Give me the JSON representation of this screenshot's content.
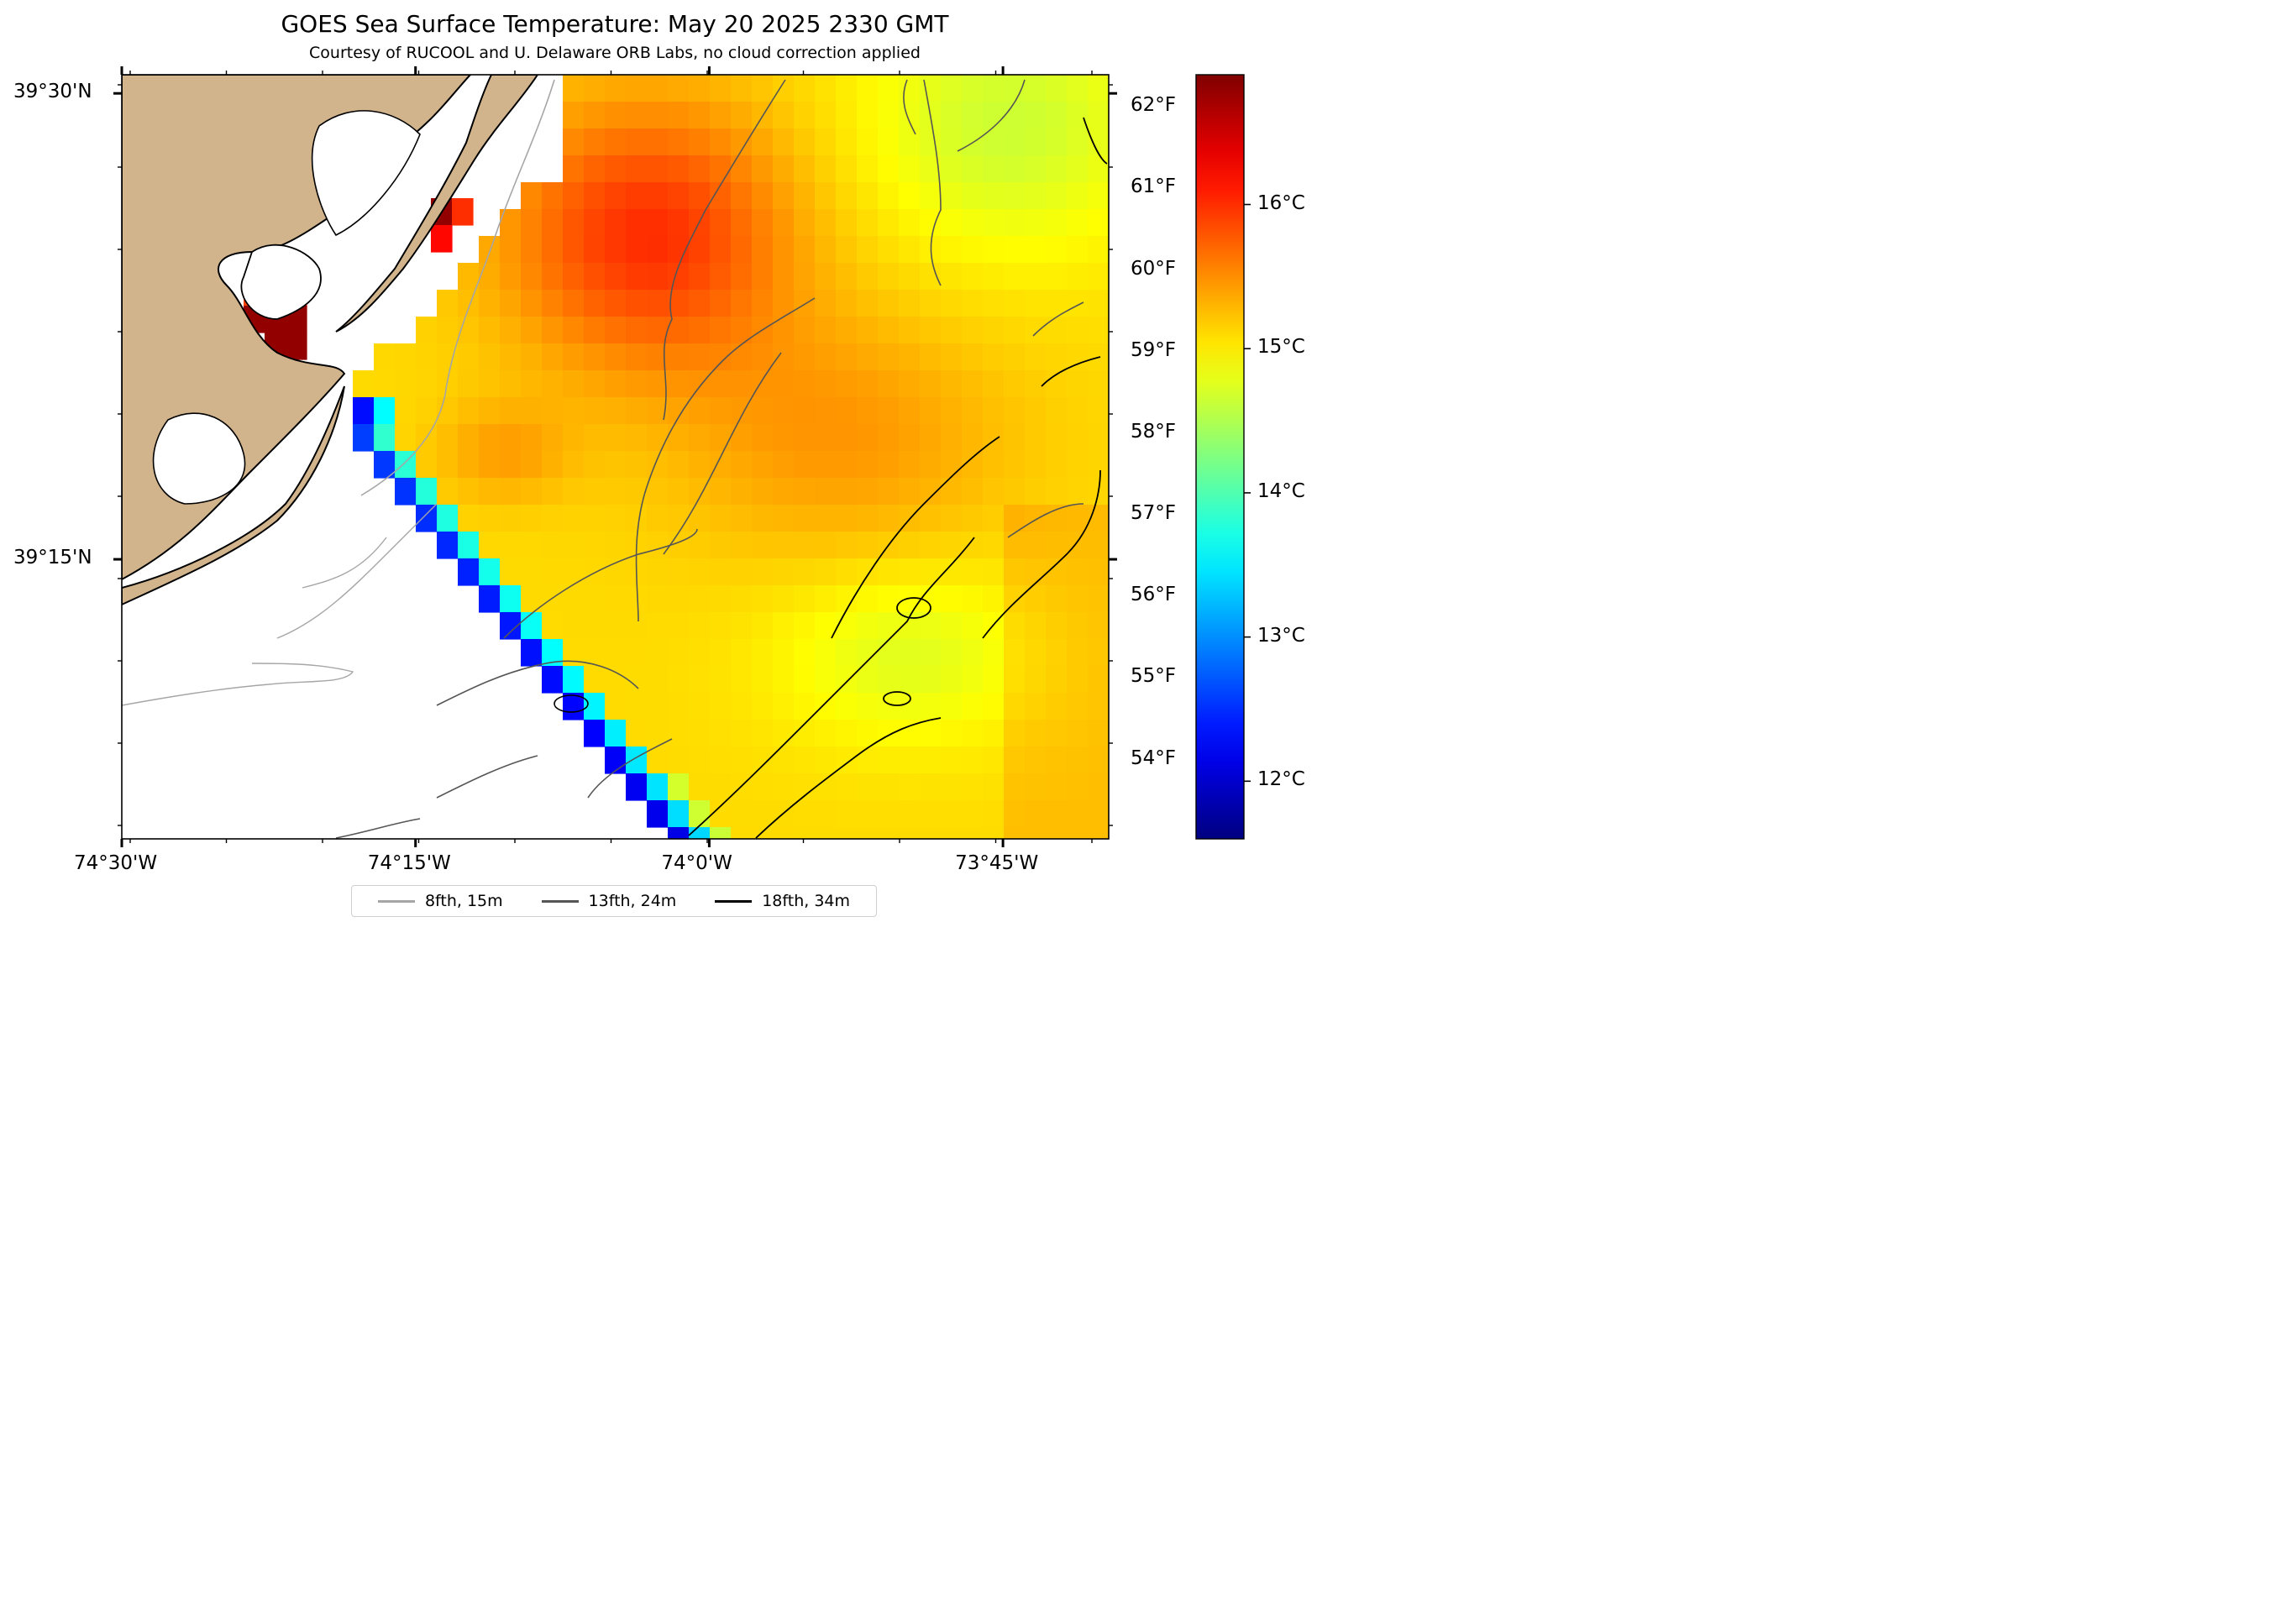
{
  "title": "GOES Sea Surface Temperature: May 20 2025 2330 GMT",
  "subtitle": "Courtesy of RUCOOL and U. Delaware ORB Labs, no cloud correction applied",
  "map": {
    "lon_range": [
      -74.5,
      -73.66
    ],
    "lat_range": [
      39.1,
      39.51
    ],
    "x_ticks": [
      {
        "lon": -74.5,
        "label": "74°30'W"
      },
      {
        "lon": -74.25,
        "label": "74°15'W"
      },
      {
        "lon": -74.0,
        "label": "74°0'W"
      },
      {
        "lon": -73.75,
        "label": "73°45'W"
      }
    ],
    "y_ticks": [
      {
        "lat": 39.5,
        "label": "39°30'N"
      },
      {
        "lat": 39.25,
        "label": "39°15'N"
      }
    ],
    "colors": {
      "land": "#d2b48c",
      "no_data": "#ffffff",
      "coast": "#000000"
    }
  },
  "legend": [
    {
      "label": "8fth, 15m",
      "color": "#a6a6a6"
    },
    {
      "label": "13fth, 24m",
      "color": "#555555"
    },
    {
      "label": "18fth, 34m",
      "color": "#000000"
    }
  ],
  "colorbar": {
    "colormap": "jet",
    "range_c": [
      11.6,
      16.9
    ],
    "celsius_ticks": [
      "12°C",
      "13°C",
      "14°C",
      "15°C",
      "16°C"
    ],
    "fahrenheit_ticks": [
      "54°F",
      "55°F",
      "56°F",
      "57°F",
      "58°F",
      "59°F",
      "60°F",
      "61°F",
      "62°F"
    ]
  }
}
